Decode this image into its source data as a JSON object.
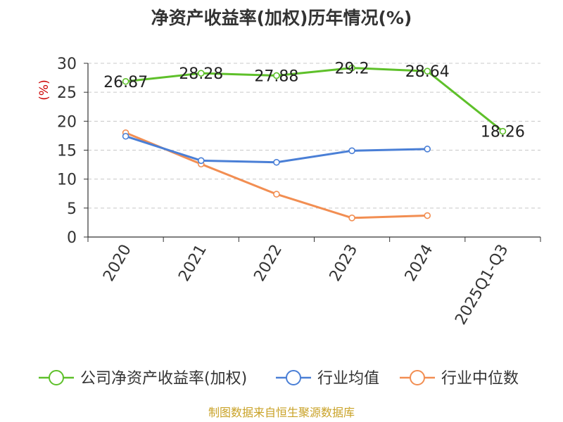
{
  "chart_data": {
    "type": "line",
    "title": "净资产收益率(加权)历年情况(%)",
    "ylabel": "(%)",
    "xlabel": "",
    "ylim": [
      0,
      30
    ],
    "yticks": [
      0,
      5,
      10,
      15,
      20,
      25,
      30
    ],
    "grid": true,
    "categories": [
      "2020",
      "2021",
      "2022",
      "2023",
      "2024",
      "2025Q1-Q3"
    ],
    "series": [
      {
        "name": "公司净资产收益率(加权)",
        "color": "#5ec02a",
        "values": [
          26.87,
          28.28,
          27.88,
          29.2,
          28.64,
          18.26
        ],
        "labels": [
          "26.87",
          "28.28",
          "27.88",
          "29.2",
          "28.64",
          "18.26"
        ],
        "show_labels": true
      },
      {
        "name": "行业均值",
        "color": "#4a7fd6",
        "values": [
          17.4,
          13.2,
          12.9,
          14.9,
          15.2,
          null
        ],
        "show_labels": false
      },
      {
        "name": "行业中位数",
        "color": "#f28e52",
        "values": [
          18.0,
          12.6,
          7.4,
          3.3,
          3.7,
          null
        ],
        "show_labels": false
      }
    ],
    "legend_position": "bottom",
    "source": "制图数据来自恒生聚源数据库"
  }
}
